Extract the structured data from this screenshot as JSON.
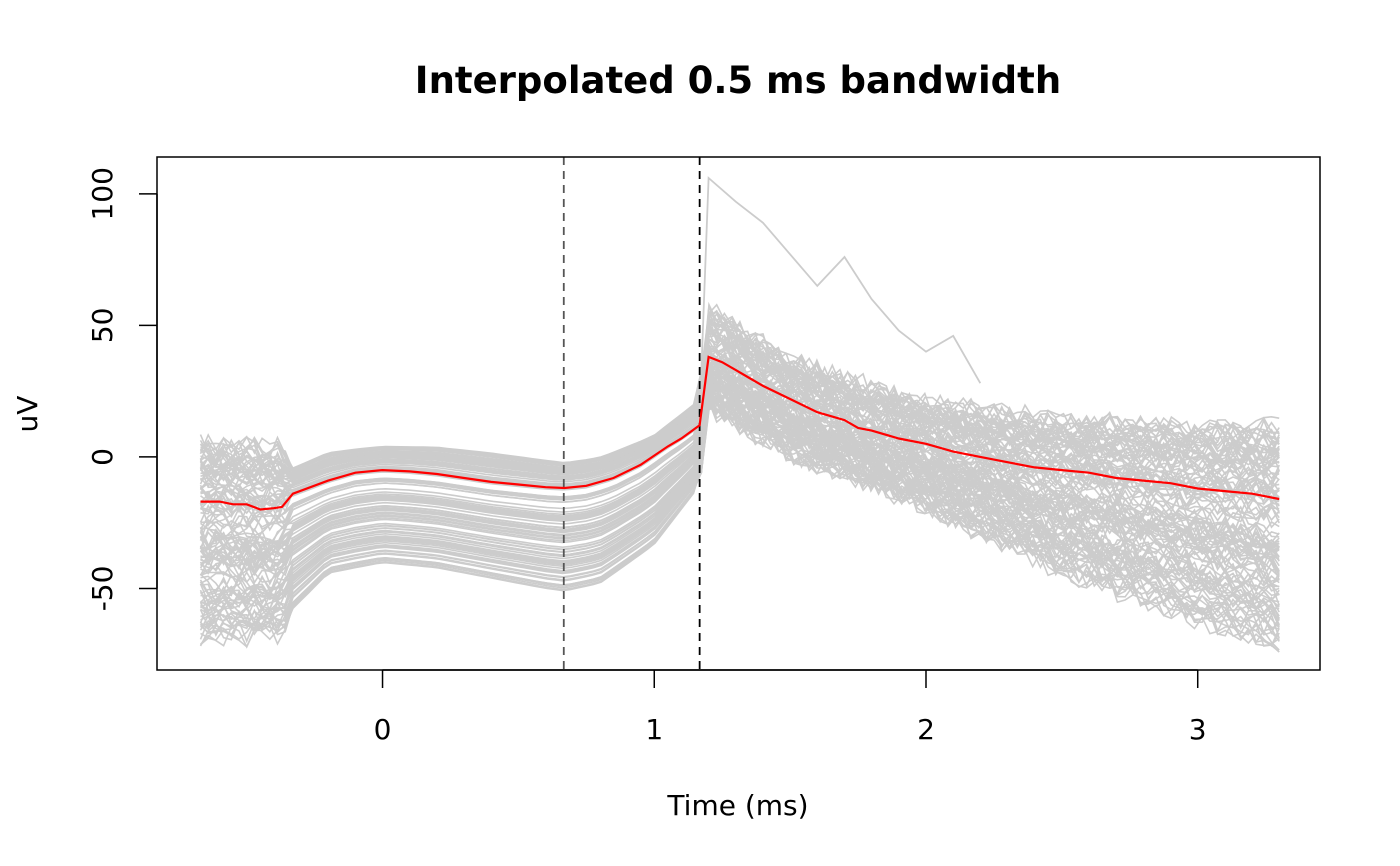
{
  "chart_data": {
    "type": "line",
    "title": "Interpolated 0.5 ms bandwidth",
    "xlabel": "Time (ms)",
    "ylabel": "uV",
    "xlim": [
      -0.83,
      3.45
    ],
    "ylim": [
      -81,
      114
    ],
    "x_ticks": [
      0,
      1,
      2,
      3
    ],
    "y_ticks": [
      -50,
      0,
      50,
      100
    ],
    "grid": false,
    "colors": {
      "traces": "#cccccc",
      "mean": "#ff0000",
      "vline_1": "#555555",
      "vline_2": "#000000"
    },
    "vertical_lines": [
      {
        "x": 0.667,
        "style": "dashed"
      },
      {
        "x": 1.167,
        "style": "dashed"
      }
    ],
    "mean_series": {
      "x": [
        -0.67,
        -0.6,
        -0.55,
        -0.5,
        -0.45,
        -0.4,
        -0.37,
        -0.33,
        -0.2,
        -0.1,
        0.0,
        0.1,
        0.2,
        0.3,
        0.4,
        0.5,
        0.6,
        0.67,
        0.75,
        0.85,
        0.95,
        1.05,
        1.1,
        1.167,
        1.2,
        1.25,
        1.3,
        1.35,
        1.4,
        1.5,
        1.6,
        1.7,
        1.75,
        1.8,
        1.9,
        2.0,
        2.1,
        2.2,
        2.3,
        2.4,
        2.5,
        2.6,
        2.7,
        2.8,
        2.9,
        3.0,
        3.1,
        3.2,
        3.3
      ],
      "y": [
        -17,
        -17,
        -18,
        -18,
        -20,
        -19.5,
        -19,
        -14,
        -9,
        -6,
        -5,
        -5.5,
        -6.5,
        -8,
        -9.5,
        -10.5,
        -11.5,
        -11.8,
        -11,
        -8,
        -3,
        4,
        7,
        12,
        38,
        36,
        33,
        30,
        27,
        22,
        17,
        14,
        11,
        10,
        7,
        5,
        2,
        0,
        -2,
        -4,
        -5,
        -6,
        -8,
        -9,
        -10,
        -12,
        -13,
        -14,
        -16
      ]
    },
    "trace_band": {
      "x": [
        -0.67,
        -0.37,
        -0.33,
        -0.2,
        0.0,
        0.2,
        0.4,
        0.6,
        0.67,
        0.8,
        1.0,
        1.167,
        1.2,
        1.5,
        2.0,
        2.5,
        3.0,
        3.3
      ],
      "upper": [
        10,
        8,
        -2,
        4,
        6,
        6,
        4,
        1,
        0,
        2,
        10,
        24,
        60,
        40,
        24,
        18,
        16,
        18
      ],
      "lower": [
        -72,
        -70,
        -60,
        -46,
        -42,
        -44,
        -48,
        -52,
        -53,
        -50,
        -35,
        -12,
        18,
        0,
        -20,
        -45,
        -65,
        -75
      ]
    },
    "outlier_series": {
      "x": [
        1.167,
        1.2,
        1.3,
        1.4,
        1.5,
        1.6,
        1.7,
        1.8,
        1.9,
        2.0,
        2.1,
        2.2
      ],
      "y": [
        15,
        106,
        97,
        89,
        77,
        65,
        76,
        60,
        48,
        40,
        46,
        28
      ]
    },
    "trace_count": 120
  }
}
